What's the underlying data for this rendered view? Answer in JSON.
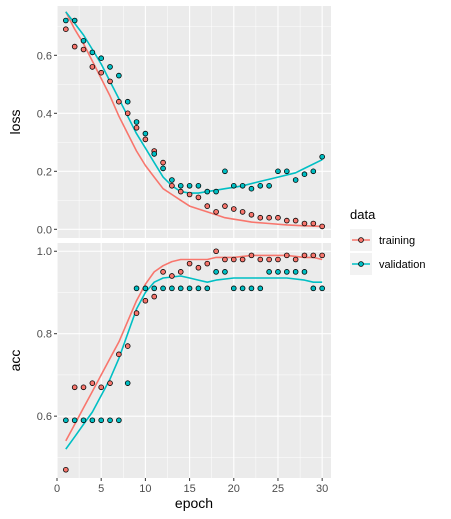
{
  "chart_data": {
    "type": "line",
    "facets": [
      "loss",
      "acc"
    ],
    "xlabel": "epoch",
    "legend_title": "data",
    "legend_position": "right",
    "grid": true,
    "smoothed": true,
    "x": [
      1,
      2,
      3,
      4,
      5,
      6,
      7,
      8,
      9,
      10,
      11,
      12,
      13,
      14,
      15,
      16,
      17,
      18,
      19,
      20,
      21,
      22,
      23,
      24,
      25,
      26,
      27,
      28,
      29,
      30
    ],
    "xlim": [
      0,
      31
    ],
    "xticks": [
      0,
      5,
      10,
      15,
      20,
      25,
      30
    ],
    "series": [
      {
        "name": "training",
        "color": "#F8766D",
        "loss": [
          0.69,
          0.63,
          0.62,
          0.56,
          0.54,
          0.51,
          0.44,
          0.4,
          0.35,
          0.31,
          0.27,
          0.23,
          0.15,
          0.13,
          0.12,
          0.11,
          0.08,
          0.06,
          0.08,
          0.07,
          0.06,
          0.05,
          0.04,
          0.04,
          0.04,
          0.03,
          0.03,
          0.02,
          0.02,
          0.01
        ],
        "acc": [
          0.47,
          0.67,
          0.67,
          0.68,
          0.67,
          0.68,
          0.75,
          0.77,
          0.85,
          0.88,
          0.89,
          0.95,
          0.94,
          0.95,
          0.97,
          0.96,
          0.97,
          1.0,
          0.98,
          0.98,
          0.98,
          0.99,
          0.98,
          0.98,
          0.98,
          0.99,
          0.98,
          0.99,
          0.99,
          0.99
        ]
      },
      {
        "name": "validation",
        "color": "#00BFC4",
        "loss": [
          0.72,
          0.72,
          0.65,
          0.61,
          0.59,
          0.56,
          0.53,
          0.44,
          0.37,
          0.33,
          0.26,
          0.21,
          0.17,
          0.15,
          0.15,
          0.15,
          0.13,
          0.13,
          0.2,
          0.15,
          0.15,
          0.14,
          0.15,
          0.15,
          0.2,
          0.2,
          0.17,
          0.19,
          0.2,
          0.25
        ],
        "acc": [
          0.59,
          0.59,
          0.59,
          0.59,
          0.59,
          0.59,
          0.59,
          0.68,
          0.91,
          0.91,
          0.91,
          0.91,
          0.91,
          0.91,
          0.91,
          0.91,
          0.91,
          0.95,
          0.95,
          0.91,
          0.91,
          0.91,
          0.91,
          0.95,
          0.95,
          0.95,
          0.95,
          0.95,
          0.91,
          0.91
        ]
      }
    ],
    "smooth_lines": {
      "training": {
        "loss": [
          0.75,
          0.69,
          0.64,
          0.58,
          0.52,
          0.46,
          0.39,
          0.33,
          0.27,
          0.22,
          0.18,
          0.14,
          0.12,
          0.1,
          0.08,
          0.07,
          0.06,
          0.05,
          0.04,
          0.035,
          0.03,
          0.025,
          0.02,
          0.015,
          0.012,
          0.01
        ],
        "acc": [
          0.54,
          0.58,
          0.62,
          0.66,
          0.7,
          0.74,
          0.78,
          0.83,
          0.88,
          0.92,
          0.95,
          0.965,
          0.975,
          0.98,
          0.98,
          0.98,
          0.98,
          0.985,
          0.985,
          0.99,
          0.99,
          0.99,
          0.985,
          0.985,
          0.98
        ],
        "loss_x": [
          1,
          2,
          3,
          4,
          5,
          6,
          7,
          8,
          9,
          10,
          11,
          12,
          13,
          14,
          15,
          16,
          17,
          18,
          19,
          20,
          21,
          22,
          24,
          26,
          28,
          30
        ],
        "acc_x": [
          1,
          2,
          3,
          4,
          5,
          6,
          7,
          8,
          9,
          10,
          11,
          12,
          13,
          14,
          15,
          16,
          17,
          18,
          20,
          22,
          24,
          26,
          28,
          29,
          30
        ]
      },
      "validation": {
        "loss": [
          0.75,
          0.71,
          0.67,
          0.62,
          0.57,
          0.51,
          0.45,
          0.39,
          0.33,
          0.28,
          0.23,
          0.18,
          0.15,
          0.13,
          0.125,
          0.125,
          0.13,
          0.135,
          0.14,
          0.145,
          0.15,
          0.165,
          0.18,
          0.195,
          0.21,
          0.24
        ],
        "acc": [
          0.52,
          0.55,
          0.58,
          0.61,
          0.65,
          0.69,
          0.74,
          0.8,
          0.86,
          0.9,
          0.925,
          0.935,
          0.94,
          0.935,
          0.93,
          0.925,
          0.93,
          0.935,
          0.935,
          0.935,
          0.935,
          0.93,
          0.925,
          0.925
        ],
        "loss_x": [
          1,
          2,
          3,
          4,
          5,
          6,
          7,
          8,
          9,
          10,
          11,
          12,
          13,
          14,
          15,
          16,
          17,
          18,
          19,
          20,
          21,
          23,
          25,
          27,
          28,
          30
        ],
        "acc_x": [
          1,
          2,
          3,
          4,
          5,
          6,
          7,
          8,
          9,
          10,
          11,
          12,
          14,
          15,
          16,
          17,
          18,
          20,
          22,
          24,
          26,
          28,
          29,
          30
        ]
      }
    },
    "panels": {
      "loss": {
        "ylabel": "loss",
        "ylim": [
          -0.03,
          0.77
        ],
        "yticks": [
          0.0,
          0.2,
          0.4,
          0.6
        ],
        "ytick_labels": [
          "0.0",
          "0.2",
          "0.4",
          "0.6"
        ]
      },
      "acc": {
        "ylabel": "acc",
        "ylim": [
          0.45,
          1.02
        ],
        "yticks": [
          0.6,
          0.8,
          1.0
        ],
        "ytick_labels": [
          "0.6",
          "0.8",
          "1.0"
        ]
      }
    },
    "colors": {
      "panel_bg": "#EBEBEB",
      "grid": "#FFFFFF",
      "text": "#4D4D4D"
    }
  }
}
